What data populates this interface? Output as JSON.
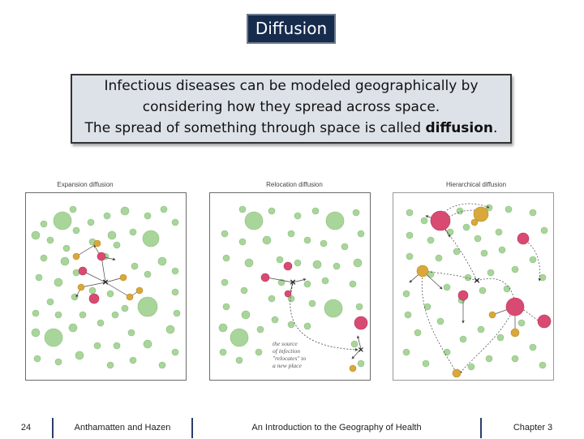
{
  "title": "Diffusion",
  "intro": {
    "line1": "Infectious diseases can be modeled geographically by",
    "line2": "considering how they spread across space.",
    "line3_prefix": "The spread of something through space is called ",
    "line3_bold": "diffusion",
    "line3_suffix": "."
  },
  "figure": {
    "panels": [
      {
        "title": "Expansion diffusion"
      },
      {
        "title": "Relocation diffusion"
      },
      {
        "title": "Hierarchical diffusion"
      }
    ],
    "relocation_note": [
      "the source",
      "of infection",
      "\"relocates\" to",
      "a new place"
    ]
  },
  "colors": {
    "title_bg": "#172b4d",
    "intro_bg": "#dde2e9",
    "healthy_circle": "#a8d69a",
    "infected_circle": "#d94a72",
    "exposed_circle": "#d9a83a",
    "footer_separator": "#2b3e6b"
  },
  "footer": {
    "page_number": "24",
    "authors": "Anthamatten and Hazen",
    "book_title": "An Introduction to the Geography of Health",
    "chapter": "Chapter 3"
  }
}
